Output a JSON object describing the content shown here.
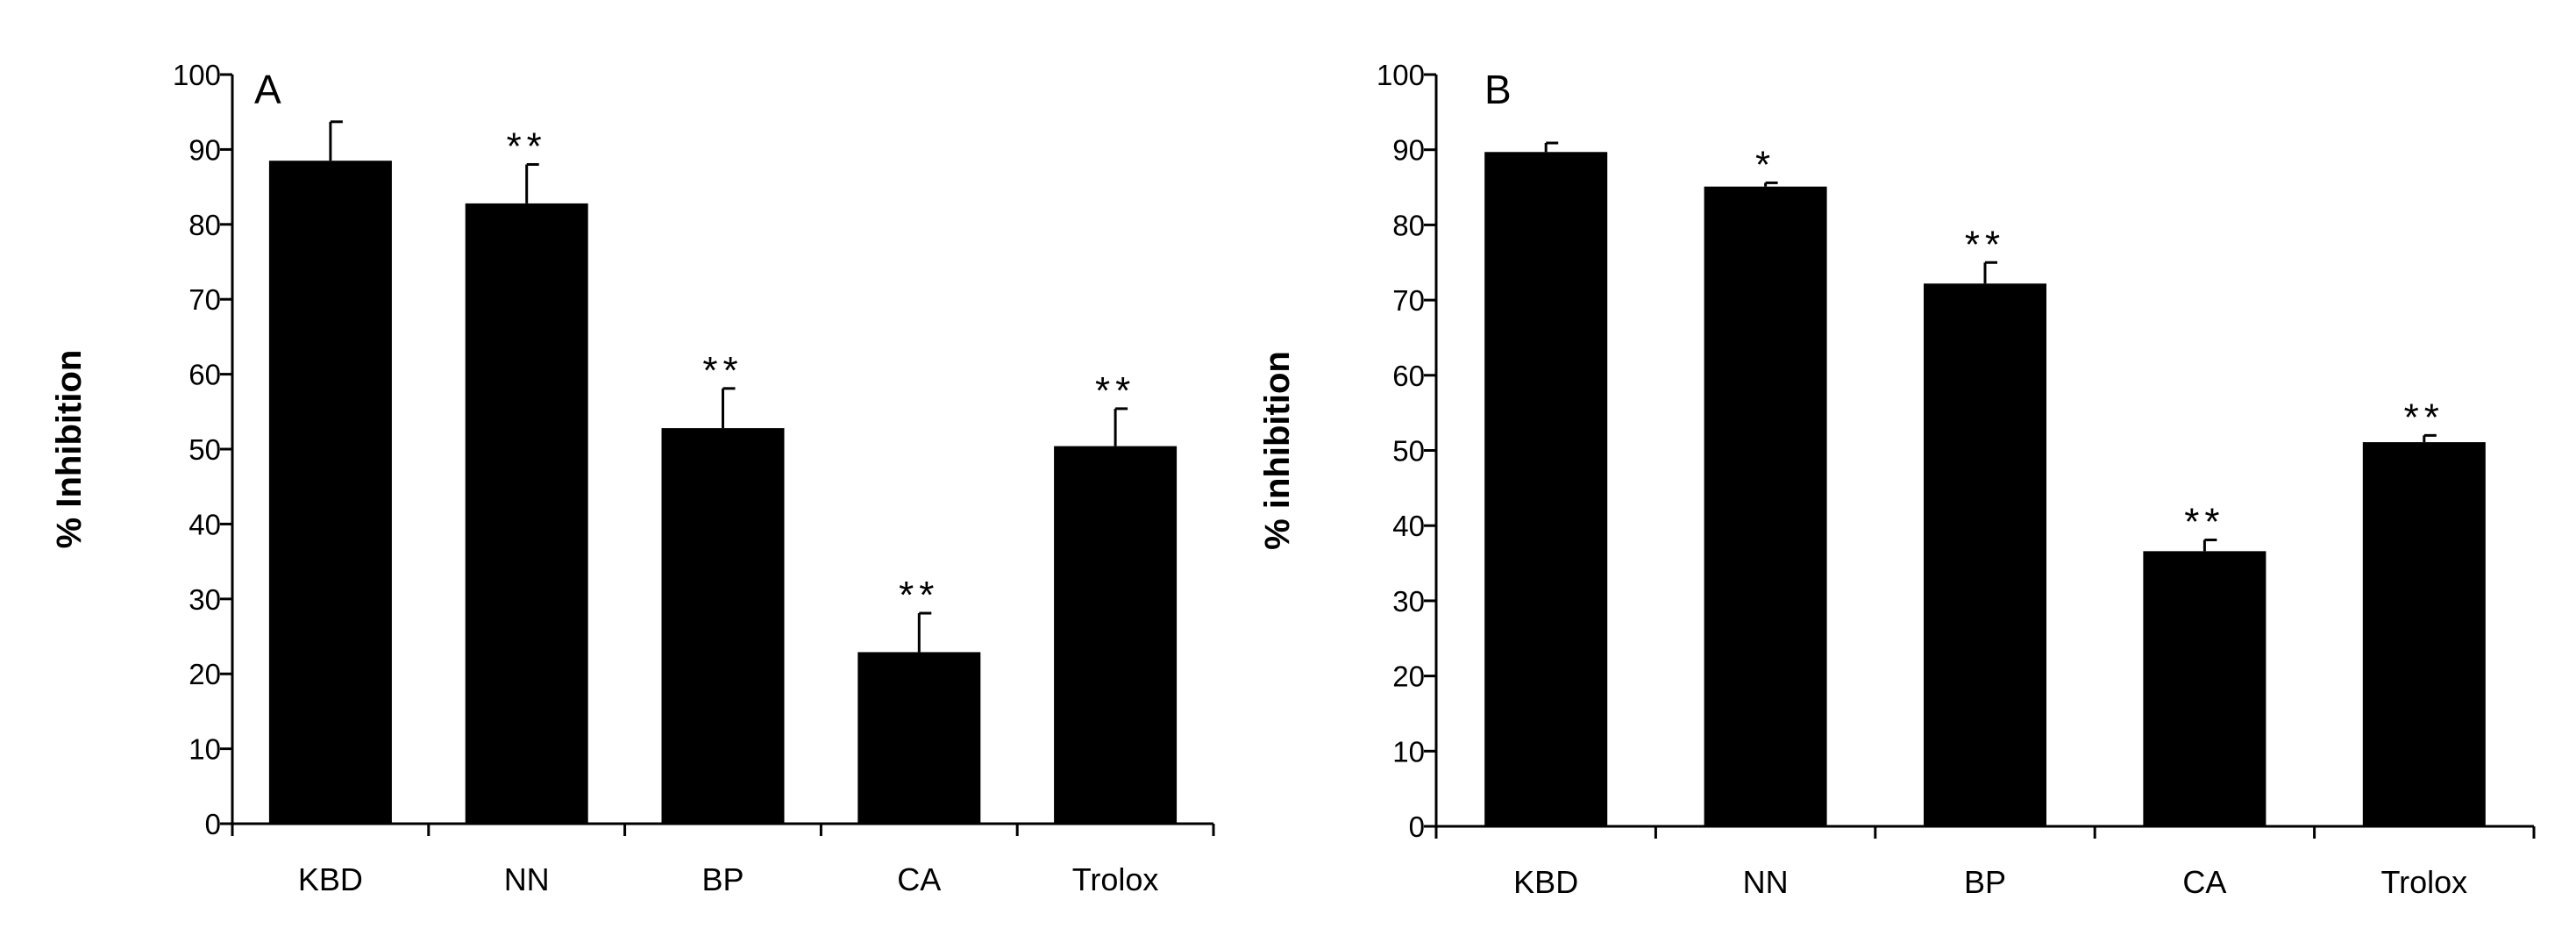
{
  "chart_data": [
    {
      "type": "bar",
      "panel_label": "A",
      "ylabel": "% Inhibition",
      "xlabel": "",
      "ylim": [
        0,
        100
      ],
      "yticks": [
        0,
        10,
        20,
        30,
        40,
        50,
        60,
        70,
        80,
        90,
        100
      ],
      "categories": [
        "KBD",
        "NN",
        "BP",
        "CA",
        "Trolox"
      ],
      "values": [
        88.5,
        82.8,
        52.8,
        22.9,
        50.4
      ],
      "errors": [
        5.2,
        5.2,
        5.3,
        5.2,
        5.0
      ],
      "significance": [
        "",
        "**",
        "**",
        "**",
        "**"
      ],
      "bar_color": "#000000",
      "grid": false,
      "legend": "none"
    },
    {
      "type": "bar",
      "panel_label": "B",
      "ylabel": "% inhibition",
      "xlabel": "",
      "ylim": [
        0,
        100
      ],
      "yticks": [
        0,
        10,
        20,
        30,
        40,
        50,
        60,
        70,
        80,
        90,
        100
      ],
      "categories": [
        "KBD",
        "NN",
        "BP",
        "CA",
        "Trolox"
      ],
      "values": [
        89.7,
        85.1,
        72.2,
        36.6,
        51.1
      ],
      "errors": [
        1.2,
        0.5,
        2.8,
        1.5,
        0.9
      ],
      "significance": [
        "",
        "*",
        "**",
        "**",
        "**"
      ],
      "bar_color": "#000000",
      "grid": false,
      "legend": "none"
    }
  ]
}
